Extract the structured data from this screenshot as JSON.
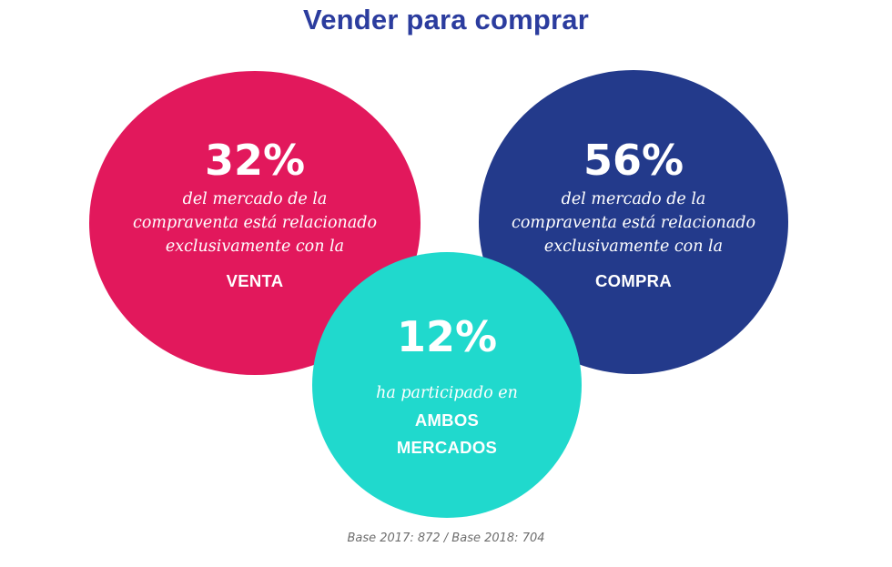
{
  "title": "Vender para comprar",
  "colors": {
    "title": "#2b3c9e",
    "venta": "#e2185c",
    "compra": "#233a8b",
    "ambos": "#20d9cd",
    "text": "#ffffff"
  },
  "circles": {
    "venta": {
      "percent": "32%",
      "description": [
        "del mercado de la",
        "compraventa está relacionado",
        "exclusivamente con la"
      ],
      "keyword": [
        "VENTA"
      ]
    },
    "compra": {
      "percent": "56%",
      "description": [
        "del mercado de la",
        "compraventa está relacionado",
        "exclusivamente con la"
      ],
      "keyword": [
        "COMPRA"
      ]
    },
    "ambos": {
      "percent": "12%",
      "description": [
        "ha participado en"
      ],
      "keyword": [
        "AMBOS",
        "MERCADOS"
      ]
    }
  },
  "footnote": "Base 2017: 872 / Base 2018: 704"
}
